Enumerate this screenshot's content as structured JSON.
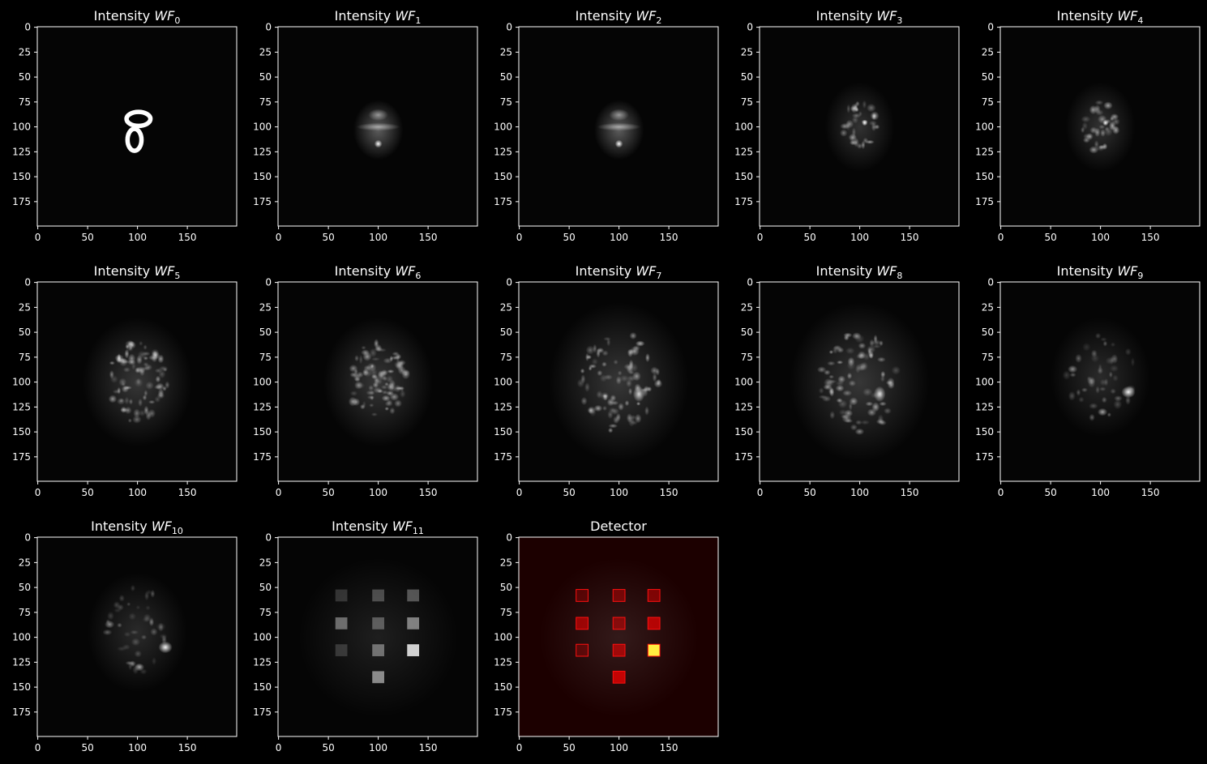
{
  "chart_data": [
    {
      "type": "image",
      "title": "Intensity",
      "variable": "WF",
      "subscript": "0",
      "xlim": [
        -0.5,
        199.5
      ],
      "ylim": [
        199.5,
        -0.5
      ],
      "xticks": [
        0,
        50,
        100,
        150
      ],
      "yticks": [
        0,
        25,
        50,
        75,
        100,
        125,
        150,
        175
      ]
    },
    {
      "type": "image",
      "title": "Intensity",
      "variable": "WF",
      "subscript": "1",
      "xlim": [
        -0.5,
        199.5
      ],
      "ylim": [
        199.5,
        -0.5
      ],
      "xticks": [
        0,
        50,
        100,
        150
      ],
      "yticks": [
        0,
        25,
        50,
        75,
        100,
        125,
        150,
        175
      ]
    },
    {
      "type": "image",
      "title": "Intensity",
      "variable": "WF",
      "subscript": "2",
      "xlim": [
        -0.5,
        199.5
      ],
      "ylim": [
        199.5,
        -0.5
      ],
      "xticks": [
        0,
        50,
        100,
        150
      ],
      "yticks": [
        0,
        25,
        50,
        75,
        100,
        125,
        150,
        175
      ]
    },
    {
      "type": "image",
      "title": "Intensity",
      "variable": "WF",
      "subscript": "3",
      "xlim": [
        -0.5,
        199.5
      ],
      "ylim": [
        199.5,
        -0.5
      ],
      "xticks": [
        0,
        50,
        100,
        150
      ],
      "yticks": [
        0,
        25,
        50,
        75,
        100,
        125,
        150,
        175
      ]
    },
    {
      "type": "image",
      "title": "Intensity",
      "variable": "WF",
      "subscript": "4",
      "xlim": [
        -0.5,
        199.5
      ],
      "ylim": [
        199.5,
        -0.5
      ],
      "xticks": [
        0,
        50,
        100,
        150
      ],
      "yticks": [
        0,
        25,
        50,
        75,
        100,
        125,
        150,
        175
      ]
    },
    {
      "type": "image",
      "title": "Intensity",
      "variable": "WF",
      "subscript": "5",
      "xlim": [
        -0.5,
        199.5
      ],
      "ylim": [
        199.5,
        -0.5
      ],
      "xticks": [
        0,
        50,
        100,
        150
      ],
      "yticks": [
        0,
        25,
        50,
        75,
        100,
        125,
        150,
        175
      ]
    },
    {
      "type": "image",
      "title": "Intensity",
      "variable": "WF",
      "subscript": "6",
      "xlim": [
        -0.5,
        199.5
      ],
      "ylim": [
        199.5,
        -0.5
      ],
      "xticks": [
        0,
        50,
        100,
        150
      ],
      "yticks": [
        0,
        25,
        50,
        75,
        100,
        125,
        150,
        175
      ]
    },
    {
      "type": "image",
      "title": "Intensity",
      "variable": "WF",
      "subscript": "7",
      "xlim": [
        -0.5,
        199.5
      ],
      "ylim": [
        199.5,
        -0.5
      ],
      "xticks": [
        0,
        50,
        100,
        150
      ],
      "yticks": [
        0,
        25,
        50,
        75,
        100,
        125,
        150,
        175
      ]
    },
    {
      "type": "image",
      "title": "Intensity",
      "variable": "WF",
      "subscript": "8",
      "xlim": [
        -0.5,
        199.5
      ],
      "ylim": [
        199.5,
        -0.5
      ],
      "xticks": [
        0,
        50,
        100,
        150
      ],
      "yticks": [
        0,
        25,
        50,
        75,
        100,
        125,
        150,
        175
      ]
    },
    {
      "type": "image",
      "title": "Intensity",
      "variable": "WF",
      "subscript": "9",
      "xlim": [
        -0.5,
        199.5
      ],
      "ylim": [
        199.5,
        -0.5
      ],
      "xticks": [
        0,
        50,
        100,
        150
      ],
      "yticks": [
        0,
        25,
        50,
        75,
        100,
        125,
        150,
        175
      ]
    },
    {
      "type": "image",
      "title": "Intensity",
      "variable": "WF",
      "subscript": "10",
      "xlim": [
        -0.5,
        199.5
      ],
      "ylim": [
        199.5,
        -0.5
      ],
      "xticks": [
        0,
        50,
        100,
        150
      ],
      "yticks": [
        0,
        25,
        50,
        75,
        100,
        125,
        150,
        175
      ]
    },
    {
      "type": "image",
      "title": "Intensity",
      "variable": "WF",
      "subscript": "11",
      "xlim": [
        -0.5,
        199.5
      ],
      "ylim": [
        199.5,
        -0.5
      ],
      "xticks": [
        0,
        50,
        100,
        150
      ],
      "yticks": [
        0,
        25,
        50,
        75,
        100,
        125,
        150,
        175
      ]
    },
    {
      "type": "image",
      "title": "Detector",
      "xlim": [
        -0.5,
        199.5
      ],
      "ylim": [
        199.5,
        -0.5
      ],
      "xticks": [
        0,
        50,
        100,
        150
      ],
      "yticks": [
        0,
        25,
        50,
        75,
        100,
        125,
        150,
        175
      ]
    }
  ]
}
